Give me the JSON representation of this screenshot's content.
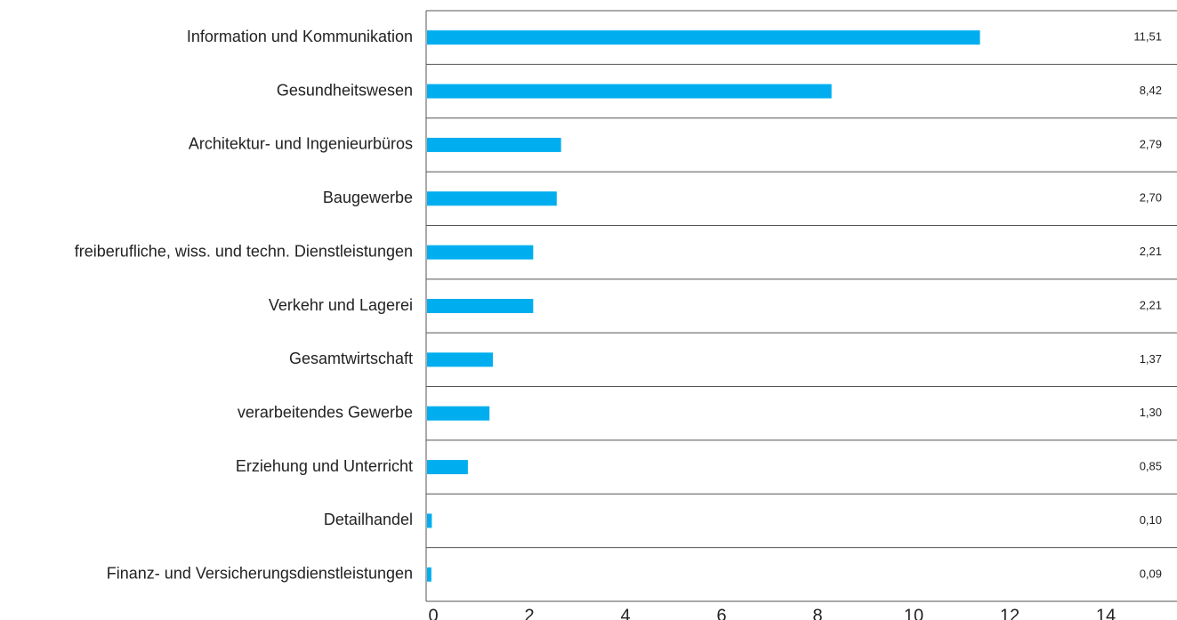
{
  "chart_data": {
    "type": "hbar",
    "categories": [
      "Information und Kommunikation",
      "Gesundheitswesen",
      "Architektur- und Ingenieurbüros",
      "Baugewerbe",
      "freiberufliche, wiss. und techn. Dienstleistungen",
      "Verkehr und Lagerei",
      "Gesamtwirtschaft",
      "verarbeitendes Gewerbe",
      "Erziehung und Unterricht",
      "Detailhandel",
      "Finanz- und Versicherungsdienstleistungen"
    ],
    "values": [
      11.51,
      8.42,
      2.79,
      2.7,
      2.21,
      2.21,
      1.37,
      1.3,
      0.85,
      0.1,
      0.09
    ],
    "value_labels": [
      "11,51",
      "8,42",
      "2,79",
      "2,70",
      "2,21",
      "2,21",
      "1,37",
      "1,30",
      "0,85",
      "0,10",
      "0,09"
    ],
    "color": "#00aeef",
    "xlim": [
      0,
      14
    ],
    "xticks": [
      0,
      2,
      4,
      6,
      8,
      10,
      12,
      14
    ]
  }
}
